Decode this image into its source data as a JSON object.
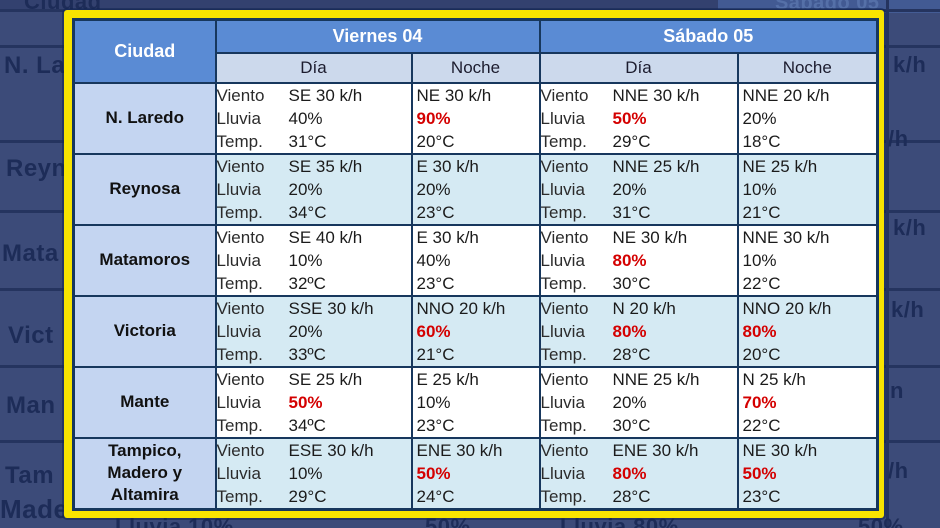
{
  "colors": {
    "header_blue": "#5a8bd4",
    "subheader_blue": "#ccd9ec",
    "city_column_blue": "#c4d5f1",
    "row_alt_blue": "#d5eaf3",
    "border_navy": "#17375d",
    "frame_yellow": "#f8e400",
    "highlight_red": "#d40000",
    "background_navy": "#3c4b79"
  },
  "table": {
    "city_header": "Ciudad",
    "group_headers": [
      "Viernes 04",
      "Sábado 05"
    ],
    "subheaders": {
      "day": "Día",
      "night": "Noche"
    },
    "labels": {
      "wind": "Viento",
      "rain": "Lluvia",
      "temp": "Temp."
    },
    "rows": [
      {
        "city": "N. Laredo",
        "cells": [
          {
            "wind": "SE 30 k/h",
            "rain": "40%",
            "rain_red": false,
            "temp": "31°C"
          },
          {
            "wind": "NE 30 k/h",
            "rain": "90%",
            "rain_red": true,
            "temp": "20°C"
          },
          {
            "wind": "NNE 30 k/h",
            "rain": "50%",
            "rain_red": true,
            "temp": "29°C"
          },
          {
            "wind": "NNE 20 k/h",
            "rain": "20%",
            "rain_red": false,
            "temp": "18°C"
          }
        ]
      },
      {
        "city": "Reynosa",
        "cells": [
          {
            "wind": "SE 35 k/h",
            "rain": "20%",
            "rain_red": false,
            "temp": "34°C"
          },
          {
            "wind": "E 30 k/h",
            "rain": "20%",
            "rain_red": false,
            "temp": "23°C"
          },
          {
            "wind": "NNE 25 k/h",
            "rain": "20%",
            "rain_red": false,
            "temp": "31°C"
          },
          {
            "wind": "NE 25 k/h",
            "rain": "10%",
            "rain_red": false,
            "temp": "21°C"
          }
        ]
      },
      {
        "city": "Matamoros",
        "cells": [
          {
            "wind": "SE 40 k/h",
            "rain": "10%",
            "rain_red": false,
            "temp": "32ºC"
          },
          {
            "wind": "E 30 k/h",
            "rain": "40%",
            "rain_red": false,
            "temp": "23°C"
          },
          {
            "wind": "NE 30 k/h",
            "rain": "80%",
            "rain_red": true,
            "temp": "30°C"
          },
          {
            "wind": "NNE 30 k/h",
            "rain": "10%",
            "rain_red": false,
            "temp": "22°C"
          }
        ]
      },
      {
        "city": "Victoria",
        "cells": [
          {
            "wind": "SSE 30 k/h",
            "rain": "20%",
            "rain_red": false,
            "temp": "33ºC"
          },
          {
            "wind": "NNO 20 k/h",
            "rain": "60%",
            "rain_red": true,
            "temp": "21°C"
          },
          {
            "wind": "N 20 k/h",
            "rain": "80%",
            "rain_red": true,
            "temp": "28°C"
          },
          {
            "wind": "NNO 20 k/h",
            "rain": "80%",
            "rain_red": true,
            "temp": "20°C"
          }
        ]
      },
      {
        "city": "Mante",
        "cells": [
          {
            "wind": "SE 25 k/h",
            "rain": "50%",
            "rain_red": true,
            "temp": "34ºC"
          },
          {
            "wind": "E 25 k/h",
            "rain": "10%",
            "rain_red": false,
            "temp": "23°C"
          },
          {
            "wind": "NNE 25 k/h",
            "rain": "20%",
            "rain_red": false,
            "temp": "30°C"
          },
          {
            "wind": "N 25 k/h",
            "rain": "70%",
            "rain_red": true,
            "temp": "22°C"
          }
        ]
      },
      {
        "city": "Tampico,\nMadero y\nAltamira",
        "cells": [
          {
            "wind": "ESE 30 k/h",
            "rain": "10%",
            "rain_red": false,
            "temp": "29°C"
          },
          {
            "wind": "ENE 30 k/h",
            "rain": "50%",
            "rain_red": true,
            "temp": "24°C"
          },
          {
            "wind": "ENE 30 k/h",
            "rain": "80%",
            "rain_red": true,
            "temp": "28°C"
          },
          {
            "wind": "NE 30 k/h",
            "rain": "50%",
            "rain_red": true,
            "temp": "23°C"
          }
        ]
      }
    ]
  },
  "background_fragments": {
    "top_left": "Ciudad",
    "top_right": "Sábado 05",
    "left": [
      "N. La",
      "Reyn",
      "Mata",
      "Vict",
      "Man",
      "Tam",
      "Made"
    ],
    "right": [
      "k/h",
      "/h",
      "k/h",
      "k/h",
      "n",
      "/h"
    ],
    "bottom": [
      "Lluvia 10%",
      "50%",
      "Lluvia 80%",
      "50%"
    ]
  }
}
